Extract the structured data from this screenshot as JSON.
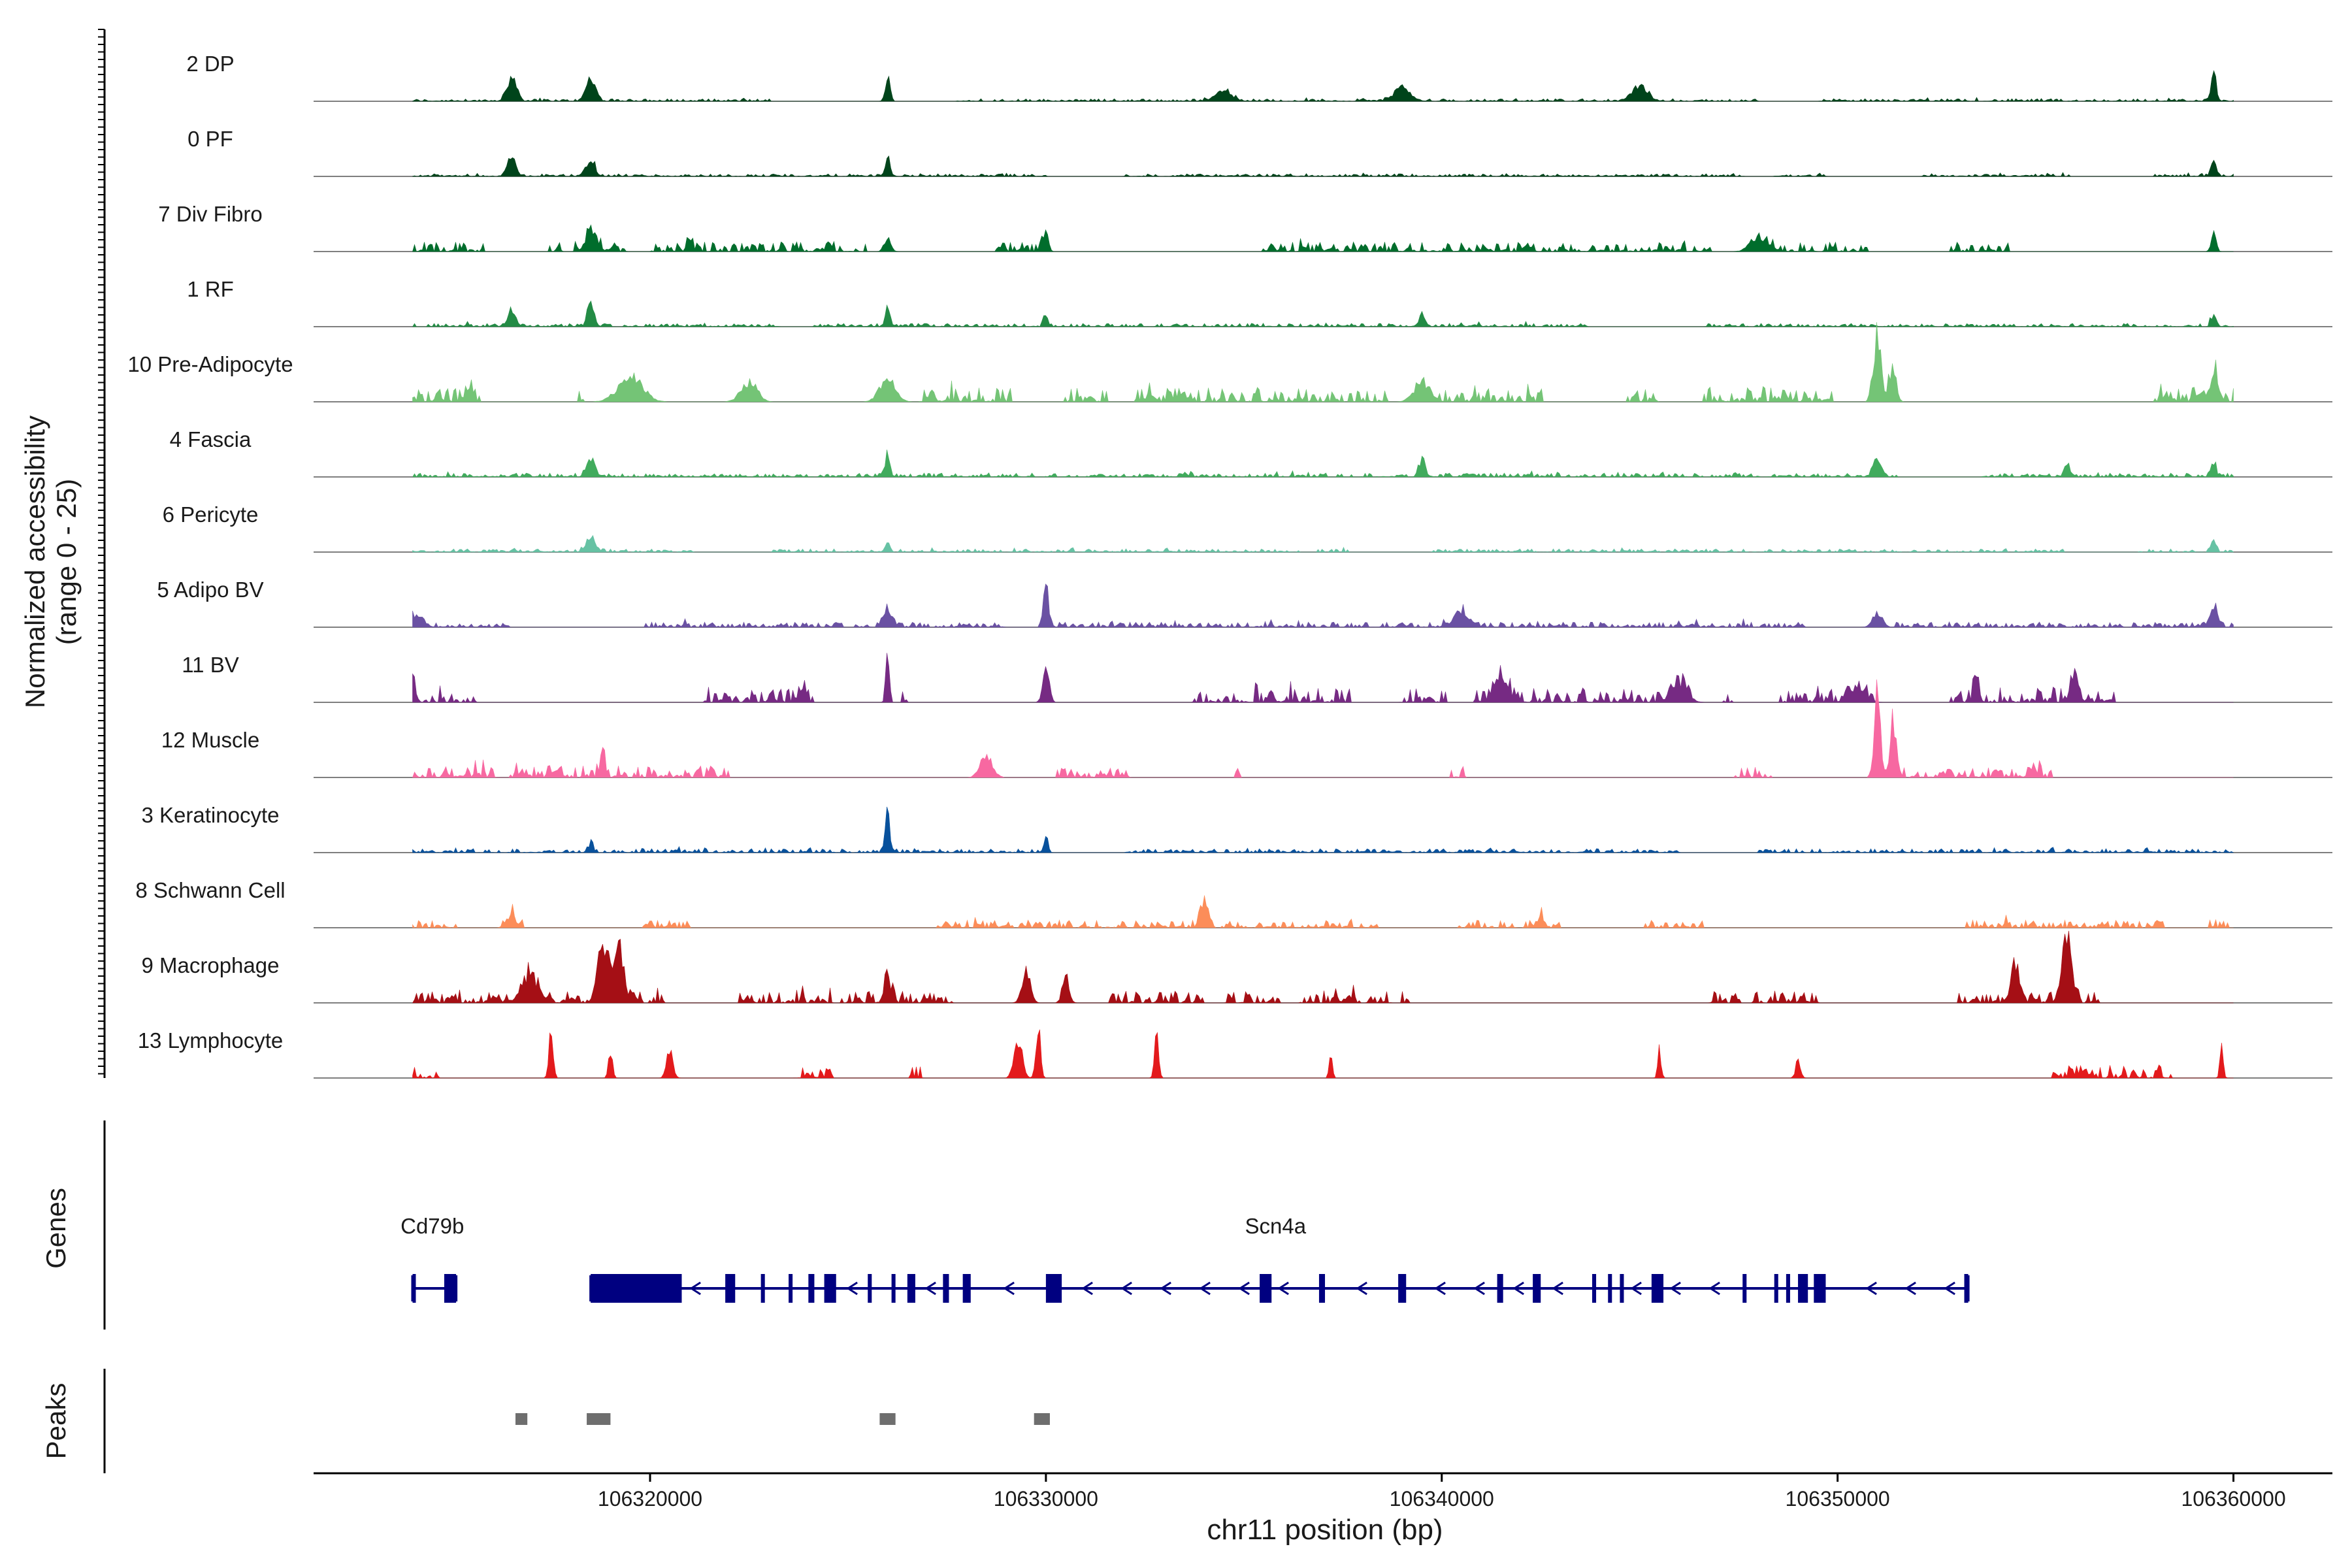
{
  "chart_data": {
    "type": "genome_track",
    "y_axis_label": "Normalized accessibility",
    "y_axis_sublabel": "(range 0 - 25)",
    "y_range": [
      0,
      25
    ],
    "x_axis_label": "chr11 position (bp)",
    "x_range": [
      106311500,
      106362500
    ],
    "x_ticks": [
      106320000,
      106330000,
      106340000,
      106350000,
      106360000
    ],
    "x_tick_labels": [
      "106320000",
      "106330000",
      "106340000",
      "106350000",
      "106360000"
    ],
    "track_start": 106314000,
    "track_end": 106360000,
    "tracks": [
      {
        "name": "2 DP",
        "color": "#00441b",
        "density": 0.9,
        "base": 0.04,
        "peaks": [
          [
            106316500,
            0.45,
            120
          ],
          [
            106318500,
            0.4,
            120
          ],
          [
            106326000,
            0.5,
            60
          ],
          [
            106334500,
            0.22,
            200
          ],
          [
            106339000,
            0.25,
            200
          ],
          [
            106345000,
            0.28,
            200
          ],
          [
            106359500,
            0.5,
            60
          ]
        ]
      },
      {
        "name": "0 PF",
        "color": "#00441b",
        "density": 0.9,
        "base": 0.04,
        "peaks": [
          [
            106316500,
            0.35,
            100
          ],
          [
            106318500,
            0.4,
            100
          ],
          [
            106326000,
            0.35,
            60
          ],
          [
            106359500,
            0.35,
            60
          ]
        ]
      },
      {
        "name": "7 Div Fibro",
        "color": "#006d2c",
        "density": 0.45,
        "base": 0.15,
        "peaks": [
          [
            106318500,
            0.3,
            150
          ],
          [
            106321000,
            0.25,
            60
          ],
          [
            106326000,
            0.3,
            80
          ],
          [
            106330000,
            0.35,
            60
          ],
          [
            106348000,
            0.3,
            200
          ],
          [
            106359500,
            0.35,
            60
          ]
        ]
      },
      {
        "name": "1 RF",
        "color": "#238b45",
        "density": 0.9,
        "base": 0.05,
        "peaks": [
          [
            106316500,
            0.3,
            100
          ],
          [
            106318500,
            0.5,
            80
          ],
          [
            106326000,
            0.55,
            50
          ],
          [
            106330000,
            0.3,
            50
          ],
          [
            106339500,
            0.25,
            60
          ],
          [
            106359500,
            0.25,
            60
          ]
        ]
      },
      {
        "name": "10 Pre-Adipocyte",
        "color": "#74c476",
        "density": 0.5,
        "base": 0.22,
        "peaks": [
          [
            106319500,
            0.5,
            300
          ],
          [
            106322500,
            0.4,
            200
          ],
          [
            106326000,
            0.45,
            200
          ],
          [
            106339500,
            0.4,
            200
          ],
          [
            106351000,
            1.2,
            100
          ],
          [
            106351400,
            0.8,
            80
          ],
          [
            106359500,
            0.6,
            100
          ]
        ]
      },
      {
        "name": "4 Fascia",
        "color": "#41ab5d",
        "density": 0.9,
        "base": 0.06,
        "peaks": [
          [
            106318500,
            0.35,
            100
          ],
          [
            106326000,
            0.4,
            60
          ],
          [
            106339500,
            0.35,
            80
          ],
          [
            106351000,
            0.35,
            100
          ],
          [
            106355800,
            0.25,
            60
          ],
          [
            106359500,
            0.25,
            60
          ]
        ]
      },
      {
        "name": "6 Pericyte",
        "color": "#66c2a4",
        "density": 0.9,
        "base": 0.05,
        "peaks": [
          [
            106318500,
            0.3,
            120
          ],
          [
            106326000,
            0.25,
            60
          ],
          [
            106359500,
            0.25,
            60
          ]
        ]
      },
      {
        "name": "5 Adipo BV",
        "color": "#6a51a3",
        "density": 0.9,
        "base": 0.08,
        "peaks": [
          [
            106314000,
            0.25,
            200
          ],
          [
            106326000,
            0.4,
            100
          ],
          [
            106330000,
            1.0,
            60
          ],
          [
            106340500,
            0.3,
            200
          ],
          [
            106351000,
            0.3,
            120
          ],
          [
            106359500,
            0.45,
            100
          ]
        ]
      },
      {
        "name": "11 BV",
        "color": "#762a83",
        "density": 0.45,
        "base": 0.22,
        "peaks": [
          [
            106314000,
            0.4,
            80
          ],
          [
            106326000,
            1.35,
            40
          ],
          [
            106330000,
            0.65,
            80
          ],
          [
            106341500,
            0.4,
            200
          ],
          [
            106346000,
            0.35,
            200
          ],
          [
            106350500,
            0.3,
            200
          ],
          [
            106353500,
            0.55,
            60
          ],
          [
            106356000,
            0.45,
            100
          ]
        ]
      },
      {
        "name": "12 Muscle",
        "color": "#f768a1",
        "density": 0.3,
        "base": 0.18,
        "peaks": [
          [
            106318800,
            0.55,
            60
          ],
          [
            106328500,
            0.45,
            150
          ],
          [
            106351000,
            1.6,
            80
          ],
          [
            106351400,
            1.1,
            80
          ]
        ]
      },
      {
        "name": "3 Keratinocyte",
        "color": "#08519c",
        "density": 0.9,
        "base": 0.06,
        "peaks": [
          [
            106318500,
            0.2,
            60
          ],
          [
            106326000,
            0.75,
            50
          ],
          [
            106330000,
            0.35,
            50
          ]
        ]
      },
      {
        "name": "8 Schwann Cell",
        "color": "#fc8d59",
        "density": 0.45,
        "base": 0.12,
        "peaks": [
          [
            106316500,
            0.25,
            120
          ],
          [
            106334000,
            0.45,
            100
          ],
          [
            106342500,
            0.25,
            80
          ]
        ]
      },
      {
        "name": "9 Macrophage",
        "color": "#a50f15",
        "density": 0.45,
        "base": 0.18,
        "peaks": [
          [
            106317000,
            0.5,
            200
          ],
          [
            106318800,
            1.35,
            120
          ],
          [
            106319200,
            1.0,
            120
          ],
          [
            106326000,
            0.5,
            80
          ],
          [
            106329500,
            0.75,
            100
          ],
          [
            106330500,
            0.65,
            80
          ],
          [
            106354500,
            0.75,
            100
          ],
          [
            106355800,
            1.2,
            120
          ]
        ]
      },
      {
        "name": "13 Lymphocyte",
        "color": "#e31a1c",
        "density": 0.12,
        "base": 0.2,
        "peaks": [
          [
            106317500,
            1.2,
            50
          ],
          [
            106319000,
            0.55,
            50
          ],
          [
            106320500,
            0.55,
            80
          ],
          [
            106329300,
            0.75,
            100
          ],
          [
            106329800,
            1.1,
            60
          ],
          [
            106332800,
            0.9,
            50
          ],
          [
            106337200,
            0.6,
            40
          ],
          [
            106345500,
            0.6,
            40
          ],
          [
            106349000,
            0.35,
            60
          ],
          [
            106359700,
            0.65,
            40
          ]
        ]
      }
    ],
    "genes_label": "Genes",
    "genes": [
      {
        "name": "Cd79b",
        "start": 106314000,
        "end": 106315100,
        "label_pos": 106314500,
        "strand": "-",
        "exons": [
          [
            106314000,
            106314080
          ],
          [
            106314800,
            106315100
          ]
        ]
      },
      {
        "name": "Scn4a",
        "start": 106318500,
        "end": 106353300,
        "label_pos": 106335800,
        "strand": "-",
        "exons": [
          [
            106318500,
            106320800
          ],
          [
            106321900,
            106322150
          ],
          [
            106322800,
            106322900
          ],
          [
            106323500,
            106323600
          ],
          [
            106324000,
            106324150
          ],
          [
            106324400,
            106324700
          ],
          [
            106325500,
            106325600
          ],
          [
            106326100,
            106326200
          ],
          [
            106326500,
            106326700
          ],
          [
            106327400,
            106327550
          ],
          [
            106327900,
            106328100
          ],
          [
            106330000,
            106330400
          ],
          [
            106335400,
            106335700
          ],
          [
            106336900,
            106337050
          ],
          [
            106338900,
            106339100
          ],
          [
            106341400,
            106341550
          ],
          [
            106342300,
            106342500
          ],
          [
            106343800,
            106343900
          ],
          [
            106344200,
            106344300
          ],
          [
            106344500,
            106344600
          ],
          [
            106345300,
            106345600
          ],
          [
            106347600,
            106347700
          ],
          [
            106348400,
            106348500
          ],
          [
            106348700,
            106348800
          ],
          [
            106349000,
            106349250
          ],
          [
            106349400,
            106349700
          ],
          [
            106353200,
            106353300
          ]
        ]
      }
    ],
    "peaks_label": "Peaks",
    "called_peaks": [
      [
        106316600,
        106316900
      ],
      [
        106318400,
        106319000
      ],
      [
        106325800,
        106326200
      ],
      [
        106329700,
        106330100
      ]
    ],
    "colors": {
      "gene": "#000080",
      "peak_block": "#6e6e6e",
      "baseline": "#7f7f7f",
      "axis": "#000000"
    }
  }
}
